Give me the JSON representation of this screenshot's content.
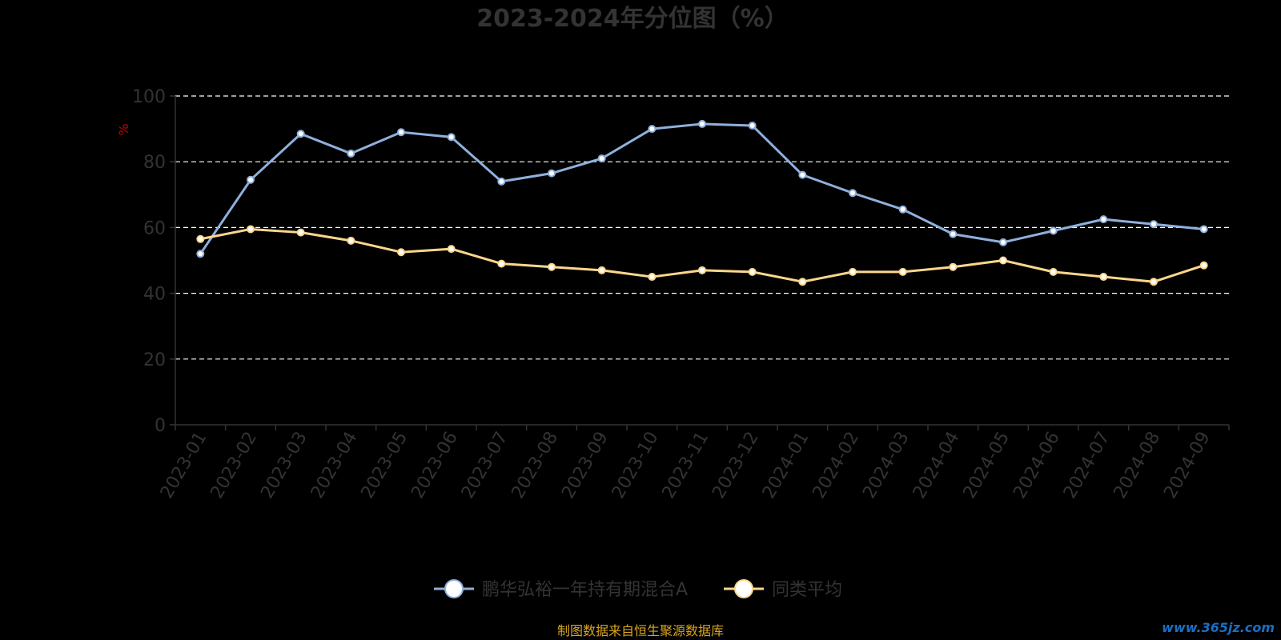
{
  "chart_data": {
    "type": "line",
    "title": "2023-2024年分位图（%）",
    "ylabel": "%",
    "ylim": [
      0,
      100
    ],
    "yticks": [
      "0",
      "20",
      "40",
      "60",
      "80",
      "100"
    ],
    "grid": true,
    "legend_position": "bottom",
    "categories": [
      "2023-01",
      "2023-02",
      "2023-03",
      "2023-04",
      "2023-05",
      "2023-06",
      "2023-07",
      "2023-08",
      "2023-09",
      "2023-10",
      "2023-11",
      "2023-12",
      "2024-01",
      "2024-02",
      "2024-03",
      "2024-04",
      "2024-05",
      "2024-06",
      "2024-07",
      "2024-08",
      "2024-09"
    ],
    "series": [
      {
        "name": "鹏华弘裕一年持有期混合A",
        "color": "#8fb0dc",
        "values": [
          52,
          74.5,
          88.5,
          82.5,
          89,
          87.5,
          74,
          76.5,
          81,
          90,
          91.5,
          91,
          76,
          70.5,
          65.5,
          58,
          55.5,
          59,
          62.5,
          61,
          59.5
        ]
      },
      {
        "name": "同类平均",
        "color": "#fcd68c",
        "values": [
          56.5,
          59.5,
          58.5,
          56,
          52.5,
          53.5,
          49,
          48,
          47,
          45,
          47,
          46.5,
          43.5,
          46.5,
          46.5,
          48,
          50,
          46.5,
          45,
          43.5,
          48.5
        ]
      }
    ]
  },
  "footer": {
    "source": "制图数据来自恒生聚源数据库",
    "watermark": "www.365jz.com"
  }
}
